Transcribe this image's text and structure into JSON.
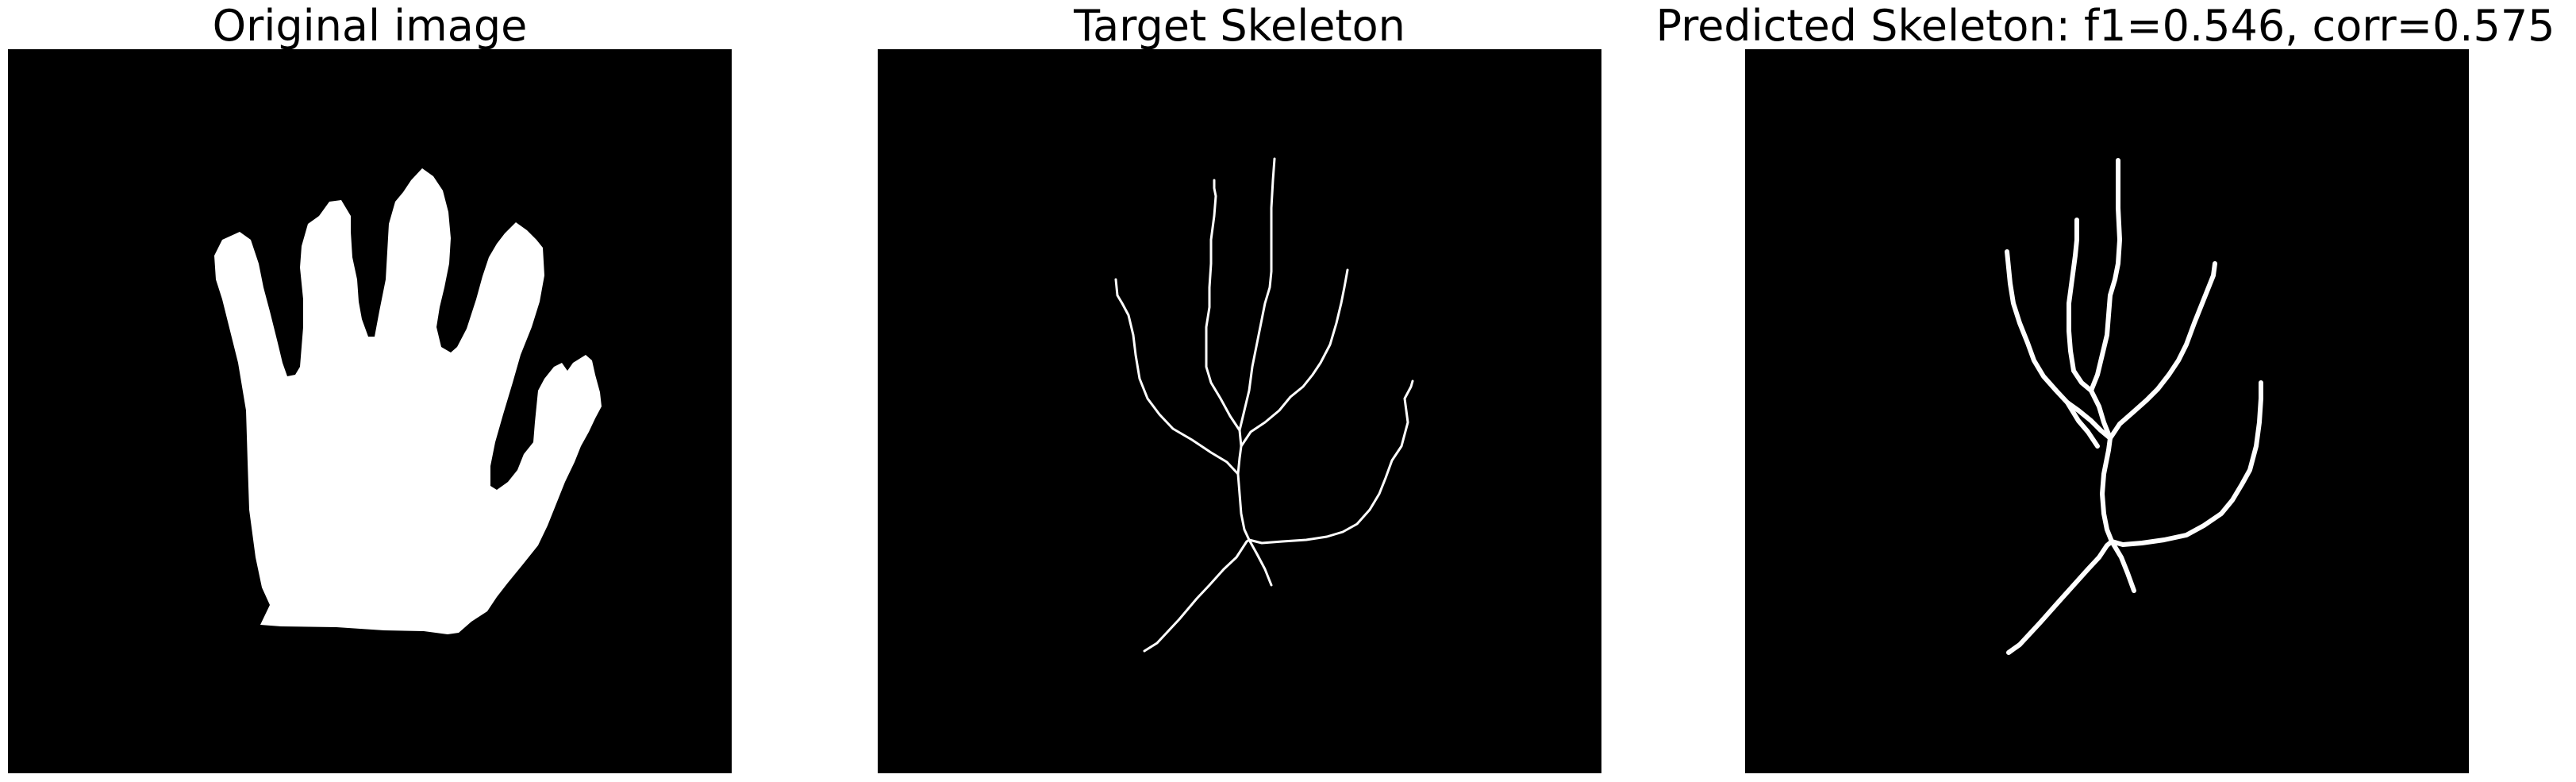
{
  "panels": [
    {
      "title": "Original image"
    },
    {
      "title": "Target Skeleton"
    },
    {
      "title": "Predicted Skeleton: f1=0.546, corr=0.575"
    }
  ],
  "colors": {
    "background": "#000000",
    "foreground": "#ffffff",
    "page": "#ffffff",
    "title_text": "#000000"
  }
}
